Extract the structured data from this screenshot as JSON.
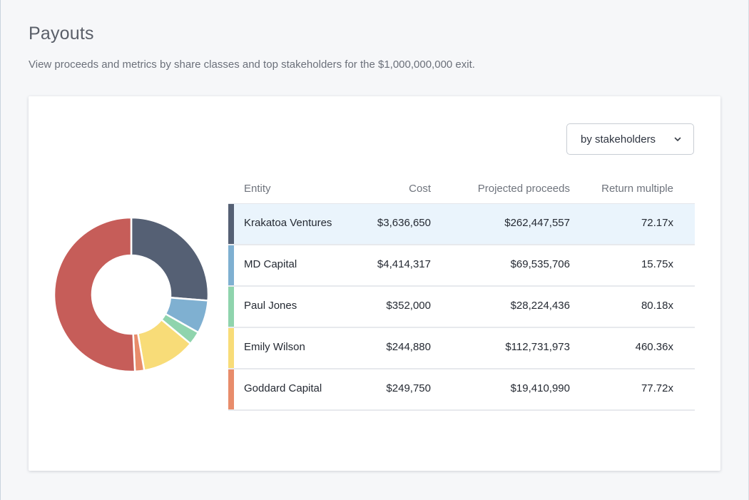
{
  "page": {
    "title": "Payouts",
    "subtitle": "View proceeds and metrics by share classes and top stakeholders for the $1,000,000,000 exit."
  },
  "view_select": {
    "value": "by stakeholders",
    "icon": "chevron-down-icon"
  },
  "table": {
    "headers": {
      "entity": "Entity",
      "cost": "Cost",
      "proceeds": "Projected proceeds",
      "multiple": "Return multiple"
    },
    "rows": [
      {
        "entity": "Krakatoa Ventures",
        "cost": "$3,636,650",
        "proceeds": "$262,447,557",
        "multiple": "72.17x",
        "color": "#556074",
        "selected": true
      },
      {
        "entity": "MD Capital",
        "cost": "$4,414,317",
        "proceeds": "$69,535,706",
        "multiple": "15.75x",
        "color": "#7fb0d1",
        "selected": false
      },
      {
        "entity": "Paul Jones",
        "cost": "$352,000",
        "proceeds": "$28,224,436",
        "multiple": "80.18x",
        "color": "#8fd4ad",
        "selected": false
      },
      {
        "entity": "Emily Wilson",
        "cost": "$244,880",
        "proceeds": "$112,731,973",
        "multiple": "460.36x",
        "color": "#f8dc78",
        "selected": false
      },
      {
        "entity": "Goddard Capital",
        "cost": "$249,750",
        "proceeds": "$19,410,990",
        "multiple": "77.72x",
        "color": "#e88c6b",
        "selected": false
      }
    ]
  },
  "chart_data": {
    "type": "pie",
    "donut": true,
    "slices": [
      {
        "label": "Krakatoa Ventures",
        "value": 262447557,
        "color": "#556074"
      },
      {
        "label": "MD Capital",
        "value": 69535706,
        "color": "#7fb0d1"
      },
      {
        "label": "Paul Jones",
        "value": 28224436,
        "color": "#8fd4ad"
      },
      {
        "label": "Emily Wilson",
        "value": 112731973,
        "color": "#f8dc78"
      },
      {
        "label": "Goddard Capital",
        "value": 19410990,
        "color": "#e88c6b"
      },
      {
        "label": "",
        "value": 507649338,
        "color": "#c65d59"
      }
    ]
  }
}
